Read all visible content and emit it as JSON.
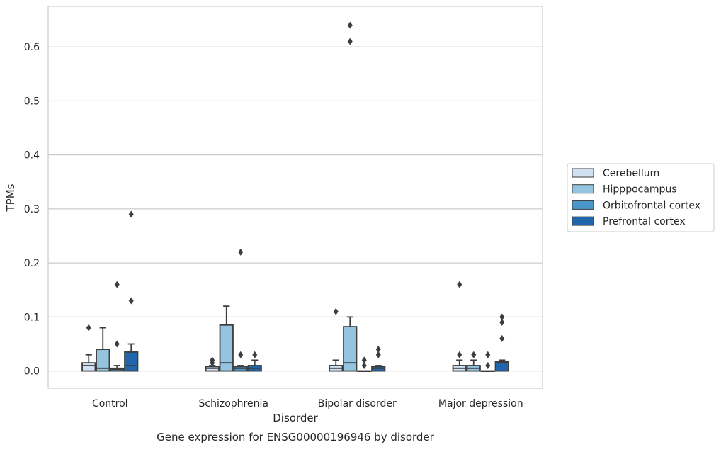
{
  "chart_data": {
    "type": "box",
    "title": "",
    "caption": "Gene expression for ENSG00000196946 by disorder",
    "xlabel": "Disorder",
    "ylabel": "TPMs",
    "categories": [
      "Control",
      "Schizophrenia",
      "Bipolar disorder",
      "Major depression"
    ],
    "y_ticks": [
      0.0,
      0.1,
      0.2,
      0.3,
      0.4,
      0.5,
      0.6
    ],
    "y_tick_labels": [
      "0.0",
      "0.1",
      "0.2",
      "0.3",
      "0.4",
      "0.5",
      "0.6"
    ],
    "ylim": [
      -0.032,
      0.675
    ],
    "grid": true,
    "legend_position": "right",
    "series": [
      {
        "name": "Cerebellum",
        "color": "#d0e1f2",
        "boxes": [
          {
            "category": "Control",
            "min": 0.0,
            "q1": 0.0,
            "median": 0.01,
            "q3": 0.015,
            "max": 0.03,
            "outliers": [
              0.08
            ]
          },
          {
            "category": "Schizophrenia",
            "min": 0.0,
            "q1": 0.0,
            "median": 0.005,
            "q3": 0.008,
            "max": 0.01,
            "outliers": [
              0.02,
              0.015
            ]
          },
          {
            "category": "Bipolar disorder",
            "min": 0.0,
            "q1": 0.0,
            "median": 0.005,
            "q3": 0.01,
            "max": 0.02,
            "outliers": [
              0.11
            ]
          },
          {
            "category": "Major depression",
            "min": 0.0,
            "q1": 0.0,
            "median": 0.005,
            "q3": 0.01,
            "max": 0.02,
            "outliers": [
              0.16,
              0.03
            ]
          }
        ]
      },
      {
        "name": "Hipppocampus",
        "color": "#94c4df",
        "boxes": [
          {
            "category": "Control",
            "min": 0.0,
            "q1": 0.0,
            "median": 0.005,
            "q3": 0.04,
            "max": 0.08,
            "outliers": []
          },
          {
            "category": "Schizophrenia",
            "min": 0.0,
            "q1": 0.0,
            "median": 0.015,
            "q3": 0.085,
            "max": 0.12,
            "outliers": []
          },
          {
            "category": "Bipolar disorder",
            "min": 0.0,
            "q1": 0.0,
            "median": 0.015,
            "q3": 0.082,
            "max": 0.1,
            "outliers": [
              0.61,
              0.64
            ]
          },
          {
            "category": "Major depression",
            "min": 0.0,
            "q1": 0.0,
            "median": 0.005,
            "q3": 0.01,
            "max": 0.02,
            "outliers": [
              0.03
            ]
          }
        ]
      },
      {
        "name": "Orbitofrontal cortex",
        "color": "#4a98c9",
        "boxes": [
          {
            "category": "Control",
            "min": 0.0,
            "q1": 0.0,
            "median": 0.003,
            "q3": 0.005,
            "max": 0.01,
            "outliers": [
              0.16,
              0.05
            ]
          },
          {
            "category": "Schizophrenia",
            "min": 0.0,
            "q1": 0.0,
            "median": 0.005,
            "q3": 0.008,
            "max": 0.01,
            "outliers": [
              0.22,
              0.03
            ]
          },
          {
            "category": "Bipolar disorder",
            "min": 0.0,
            "q1": 0.0,
            "median": 0.0,
            "q3": 0.0,
            "max": 0.0,
            "outliers": [
              0.02,
              0.01
            ]
          },
          {
            "category": "Major depression",
            "min": 0.0,
            "q1": 0.0,
            "median": 0.0,
            "q3": 0.0,
            "max": 0.0,
            "outliers": [
              0.03,
              0.01
            ]
          }
        ]
      },
      {
        "name": "Prefrontal cortex",
        "color": "#2166ac",
        "boxes": [
          {
            "category": "Control",
            "min": 0.0,
            "q1": 0.0,
            "median": 0.01,
            "q3": 0.035,
            "max": 0.05,
            "outliers": [
              0.29,
              0.13
            ]
          },
          {
            "category": "Schizophrenia",
            "min": 0.0,
            "q1": 0.0,
            "median": 0.005,
            "q3": 0.01,
            "max": 0.02,
            "outliers": [
              0.03
            ]
          },
          {
            "category": "Bipolar disorder",
            "min": 0.0,
            "q1": 0.0,
            "median": 0.005,
            "q3": 0.008,
            "max": 0.01,
            "outliers": [
              0.04,
              0.03
            ]
          },
          {
            "category": "Major depression",
            "min": 0.0,
            "q1": 0.0,
            "median": 0.015,
            "q3": 0.017,
            "max": 0.02,
            "outliers": [
              0.1,
              0.09,
              0.06
            ]
          }
        ]
      }
    ]
  }
}
